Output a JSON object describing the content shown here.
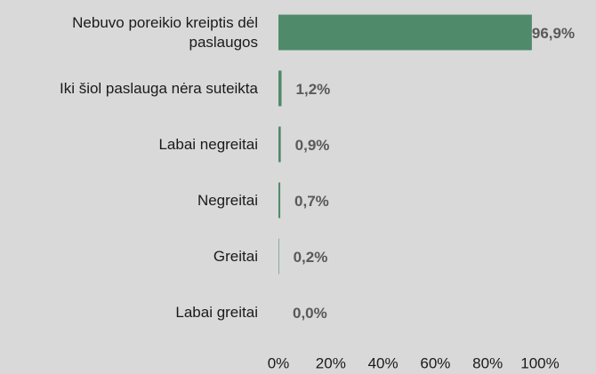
{
  "chart_data": {
    "type": "hbar",
    "categories": [
      "Nebuvo poreikio kreiptis dėl paslaugos",
      "Iki šiol paslauga nėra suteikta",
      "Labai negreitai",
      "Negreitai",
      "Greitai",
      "Labai greitai"
    ],
    "values": [
      96.9,
      1.2,
      0.9,
      0.7,
      0.2,
      0.0
    ],
    "value_labels": [
      "96,9%",
      "1,2%",
      "0,9%",
      "0,7%",
      "0,2%",
      "0,0%"
    ],
    "color": "#4f8a6b",
    "xlim": [
      0,
      100
    ],
    "xticks": [
      {
        "value": 0,
        "label": "0%"
      },
      {
        "value": 20,
        "label": "20%"
      },
      {
        "value": 40,
        "label": "40%"
      },
      {
        "value": 60,
        "label": "60%"
      },
      {
        "value": 80,
        "label": "80%"
      },
      {
        "value": 100,
        "label": "100%"
      }
    ],
    "grid": false
  }
}
